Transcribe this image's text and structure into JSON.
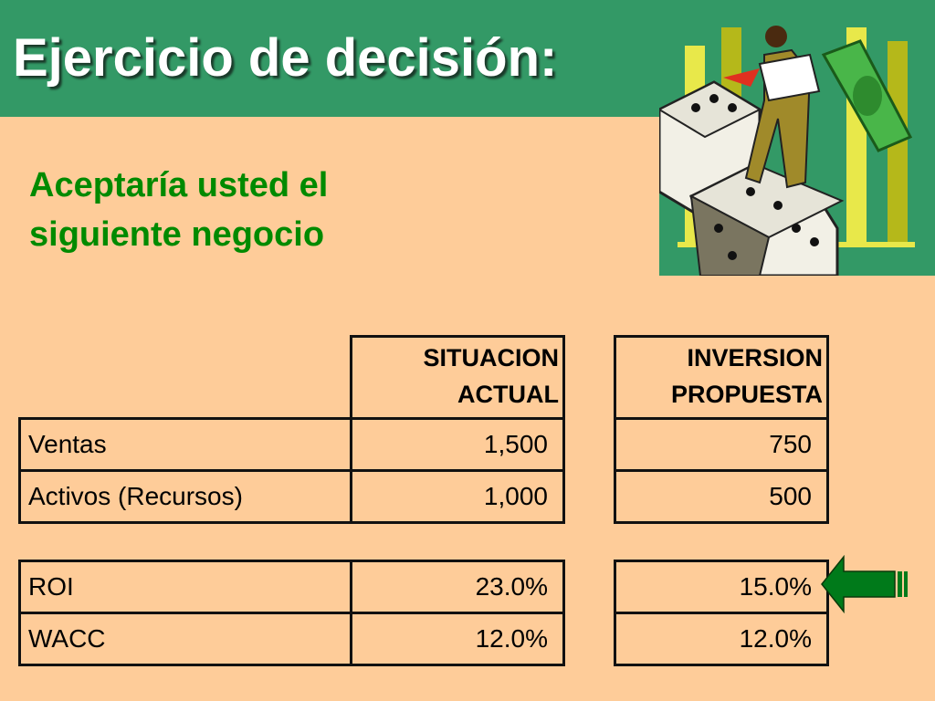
{
  "title": "Ejercicio de decisión:",
  "subtitle": [
    "Aceptaría usted el",
    "siguiente negocio"
  ],
  "table": {
    "headers": {
      "actual": [
        "SITUACION",
        "ACTUAL"
      ],
      "propuesta": [
        "INVERSION",
        "PROPUESTA"
      ]
    },
    "rows": [
      {
        "label": "Ventas",
        "actual": "1,500",
        "propuesta": "750"
      },
      {
        "label": "Activos (Recursos)",
        "actual": "1,000",
        "propuesta": "500"
      },
      {
        "label": "ROI",
        "actual": "23.0%",
        "propuesta": "15.0%"
      },
      {
        "label": "WACC",
        "actual": "12.0%",
        "propuesta": "12.0%"
      }
    ]
  },
  "colors": {
    "title_bar": "#339966",
    "background": "#fecc99",
    "subtitle": "#008a00",
    "arrow": "#007a1a"
  },
  "icons": {
    "clipart": "man-with-dice-and-money-clipart",
    "arrow": "left-arrow-icon"
  }
}
